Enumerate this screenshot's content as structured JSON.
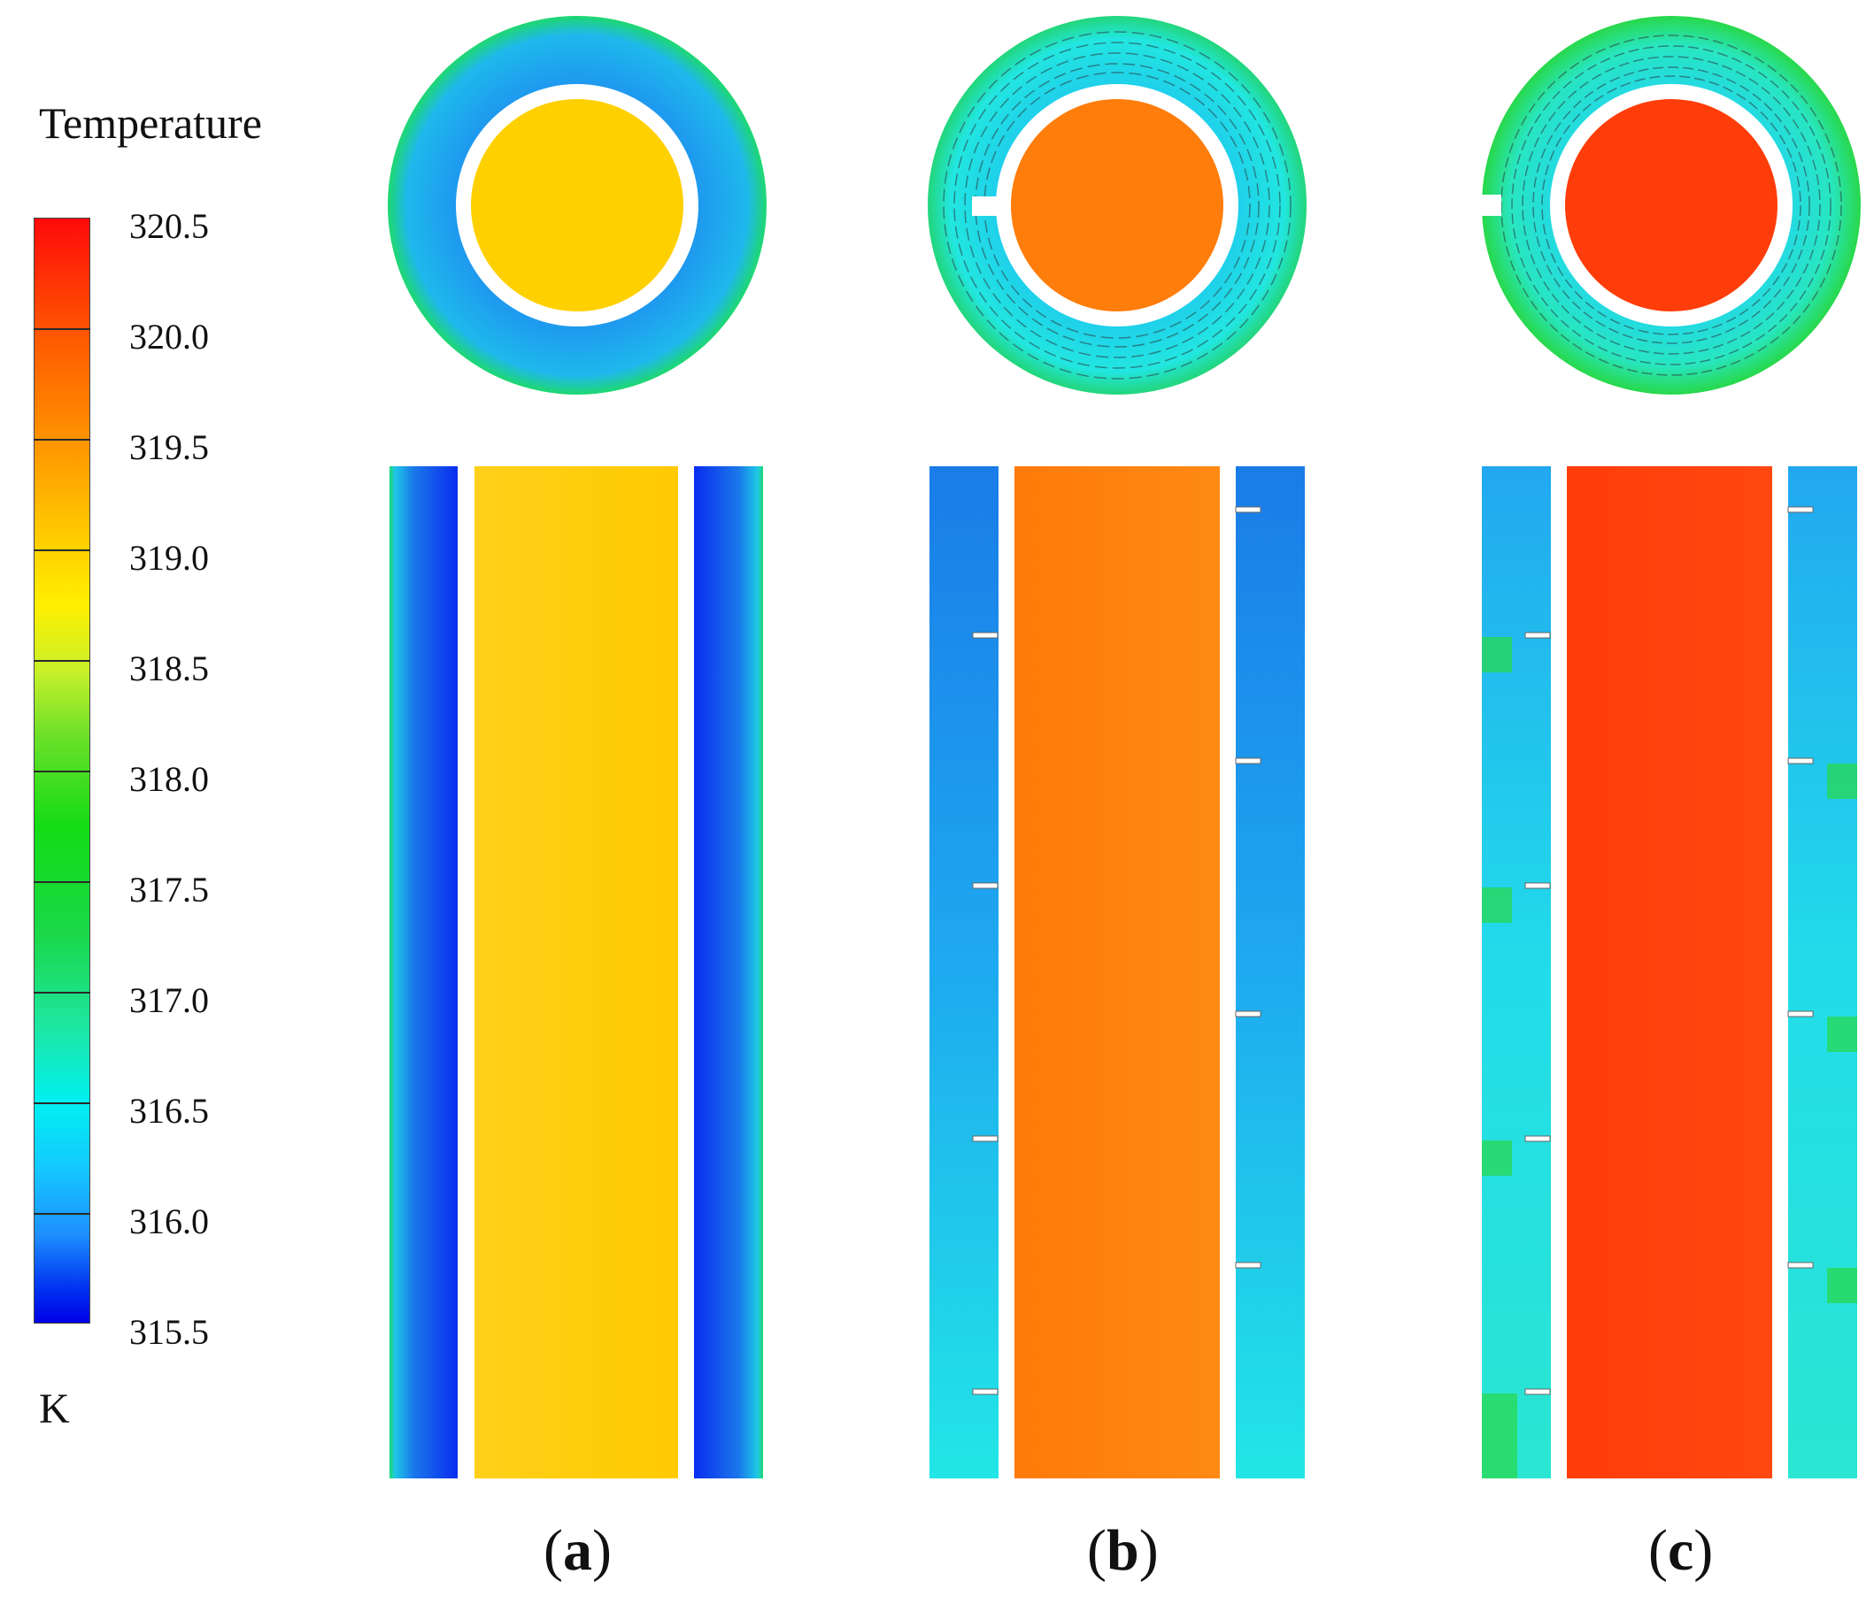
{
  "legend": {
    "title": "Temperature",
    "unit": "K",
    "ticks": [
      "320.5",
      "320.0",
      "319.5",
      "319.0",
      "318.5",
      "318.0",
      "317.5",
      "317.0",
      "316.5",
      "316.0",
      "315.5"
    ],
    "min": 315.5,
    "max": 320.5
  },
  "panels": [
    {
      "id": "a",
      "label": "a",
      "fins": 0,
      "inner_color": "#ffcf00",
      "inner_color_2": "#ffd81a",
      "annulus_color": "#1e8cf0",
      "annulus_dark": "#0a3cf0"
    },
    {
      "id": "b",
      "label": "b",
      "fins": 4,
      "inner_color": "#ff7d0a",
      "inner_color_2": "#ff8a14",
      "annulus_color": "#1eb4f0",
      "annulus_dark": "#1a7ce6"
    },
    {
      "id": "c",
      "label": "c",
      "fins": 4,
      "inner_color": "#ff3d0a",
      "inner_color_2": "#ff4a10",
      "annulus_color": "#2ee0e6",
      "annulus_dark": "#22c8f0"
    }
  ]
}
